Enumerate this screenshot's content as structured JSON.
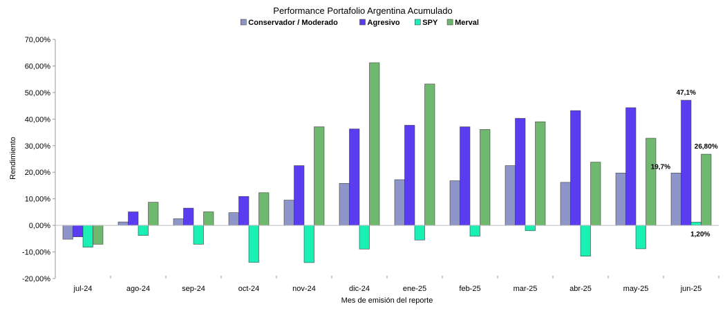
{
  "chart_data": {
    "type": "bar",
    "title": "Performance Portafolio Argentina Acumulado",
    "xlabel": "Mes de emisión del reporte",
    "ylabel": "Rendimiento",
    "ylim": [
      -0.2,
      0.7
    ],
    "y_ticks": [
      "70,00%",
      "60,00%",
      "50,00%",
      "40,00%",
      "30,00%",
      "20,00%",
      "10,00%",
      "0,00%",
      "-10,00%",
      "-20,00%"
    ],
    "categories": [
      "jul-24",
      "ago-24",
      "sep-24",
      "oct-24",
      "nov-24",
      "dic-24",
      "ene-25",
      "feb-25",
      "mar-25",
      "abr-25",
      "may-25",
      "jun-25"
    ],
    "legend_position": "top",
    "grid": false,
    "series": [
      {
        "name": "Conservador / Moderado",
        "color": "#8e95c8",
        "values": [
          -0.052,
          0.013,
          0.025,
          0.048,
          0.095,
          0.158,
          0.172,
          0.168,
          0.225,
          0.162,
          0.197,
          0.197
        ]
      },
      {
        "name": "Agresivo",
        "color": "#5b3cf0",
        "values": [
          -0.043,
          0.051,
          0.065,
          0.109,
          0.225,
          0.363,
          0.377,
          0.371,
          0.403,
          0.432,
          0.443,
          0.471
        ]
      },
      {
        "name": "SPY",
        "color": "#19f0b4",
        "values": [
          -0.082,
          -0.038,
          -0.071,
          -0.139,
          -0.14,
          -0.089,
          -0.055,
          -0.041,
          -0.02,
          -0.116,
          -0.088,
          0.012
        ]
      },
      {
        "name": "Merval",
        "color": "#70b870",
        "values": [
          -0.071,
          0.087,
          0.051,
          0.123,
          0.371,
          0.612,
          0.532,
          0.361,
          0.39,
          0.238,
          0.328,
          0.268
        ]
      }
    ],
    "annotations": [
      {
        "text": "19,7%",
        "series": 0,
        "category": "jun-25"
      },
      {
        "text": "47,1%",
        "series": 1,
        "category": "jun-25"
      },
      {
        "text": "1,20%",
        "series": 2,
        "category": "jun-25"
      },
      {
        "text": "26,80%",
        "series": 3,
        "category": "jun-25"
      }
    ]
  }
}
